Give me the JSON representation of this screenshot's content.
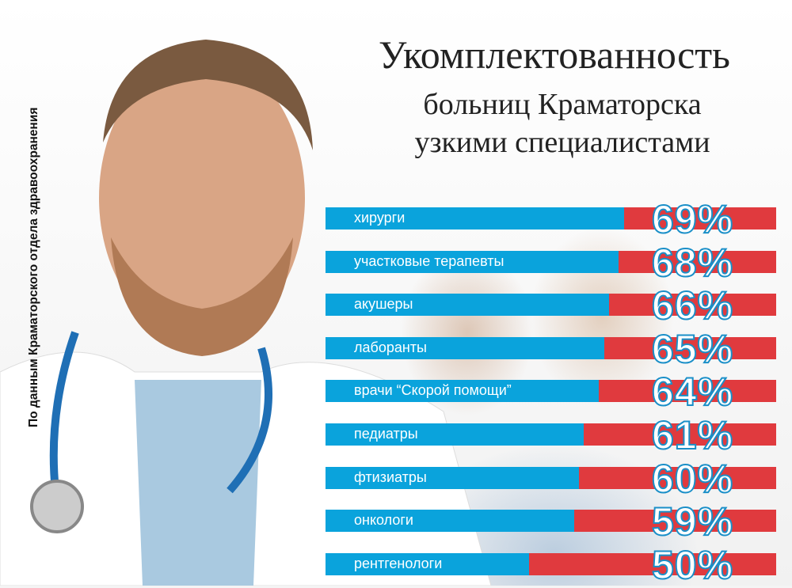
{
  "side_note": "По данным Краматорского отдела здравоохранения",
  "chart_data": {
    "type": "bar",
    "title": "Укомплектованность",
    "subtitle": [
      "больниц Краматорска",
      "узкими специалистами"
    ],
    "categories": [
      "хирурги",
      "участковые терапевты",
      "акушеры",
      "лаборанты",
      "врачи “Скорой помощи”",
      "педиатры",
      "фтизиатры",
      "онкологи",
      "рентгенологи"
    ],
    "values": [
      69,
      68,
      66,
      65,
      64,
      61,
      60,
      59,
      50
    ],
    "labels": [
      "69%",
      "68%",
      "66%",
      "65%",
      "64%",
      "61%",
      "60%",
      "59%",
      "50%"
    ],
    "unit": "%",
    "orientation": "horizontal",
    "colors": {
      "filled": "#0aa3dc",
      "remainder": "#e03a3e"
    }
  }
}
